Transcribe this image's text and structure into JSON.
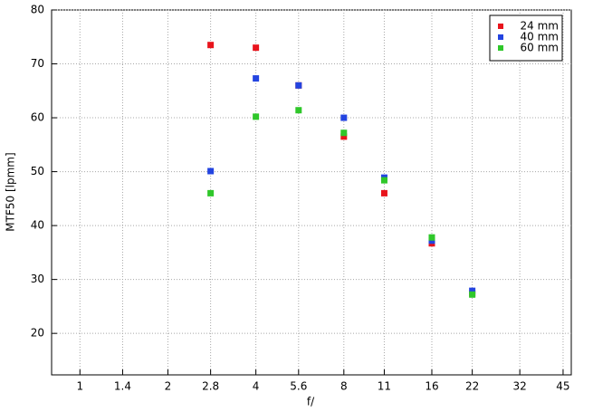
{
  "chart_data": {
    "type": "scatter",
    "xlabel": "f/",
    "ylabel": "MTF50 [lpmm]",
    "x": [
      2.8,
      4,
      5.6,
      8,
      11,
      16,
      22
    ],
    "series": [
      {
        "name": "24 mm",
        "color": "#e8141c",
        "values": [
          73.5,
          73,
          66,
          56.5,
          46,
          36.7,
          27.4
        ]
      },
      {
        "name": "40 mm",
        "color": "#2344e0",
        "values": [
          50.1,
          67.3,
          66,
          60,
          48.9,
          37.2,
          27.9
        ]
      },
      {
        "name": "60 mm",
        "color": "#2fc72a",
        "values": [
          46,
          60.2,
          61.4,
          57.2,
          48.4,
          37.8,
          27.2
        ]
      }
    ],
    "xscale": "log",
    "xlim": [
      0.8,
      48
    ],
    "xticks": [
      1,
      1.4,
      2,
      2.8,
      4,
      5.6,
      8,
      11,
      16,
      22,
      32,
      45
    ],
    "ylim": [
      12.3,
      80
    ],
    "yticks": [
      20,
      30,
      40,
      50,
      60,
      70,
      80
    ],
    "grid": true,
    "legend": "upper right"
  }
}
